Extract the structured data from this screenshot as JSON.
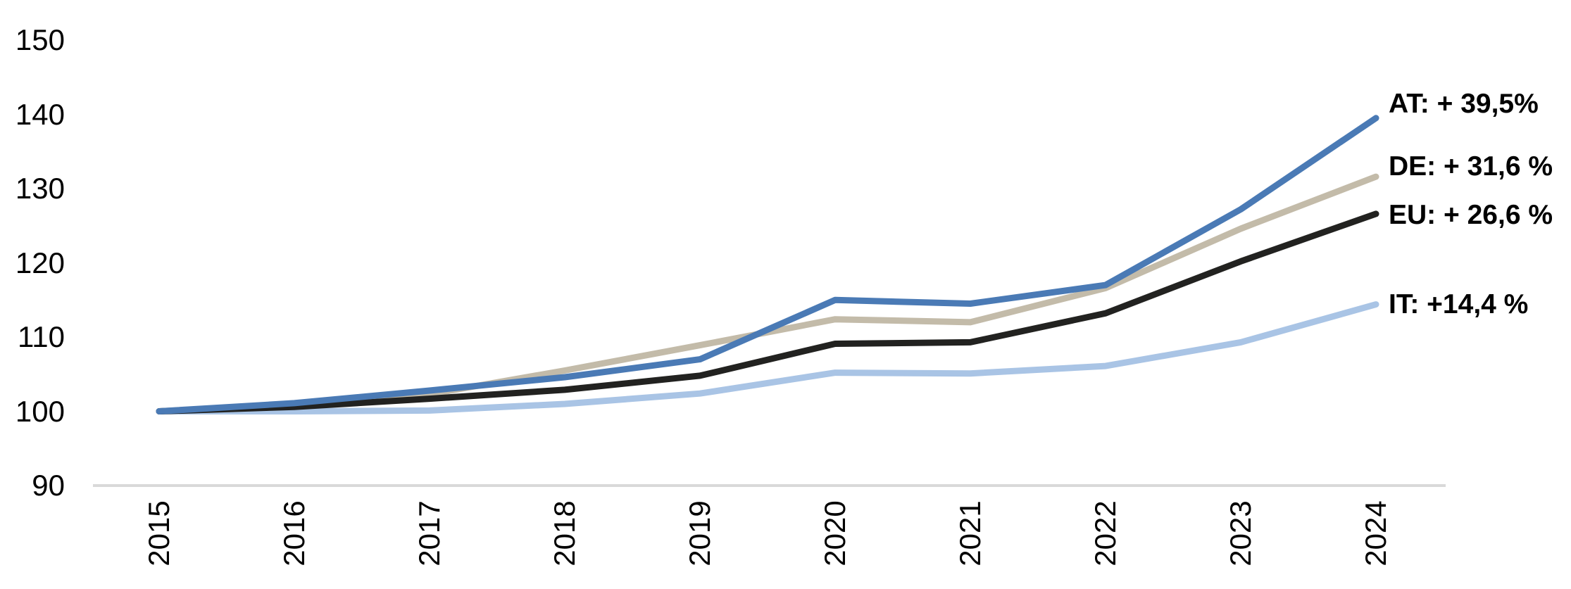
{
  "chart_data": {
    "type": "line",
    "title": "",
    "categories": [
      "2015",
      "2016",
      "2017",
      "2018",
      "2019",
      "2020",
      "2021",
      "2022",
      "2023",
      "2024"
    ],
    "series": [
      {
        "name": "AT",
        "label": "AT: + 39,5%",
        "color": "#4a7ab5",
        "values": [
          100,
          101.1,
          102.8,
          104.6,
          107.0,
          115.0,
          114.5,
          117.0,
          127.2,
          139.5
        ]
      },
      {
        "name": "DE",
        "label": "DE: + 31,6 %",
        "color": "#c3bba9",
        "values": [
          100,
          100.9,
          102.3,
          105.5,
          108.9,
          112.4,
          112.0,
          116.6,
          124.6,
          131.6
        ]
      },
      {
        "name": "EU",
        "label": "EU: + 26,6 %",
        "color": "#222220",
        "values": [
          100,
          100.6,
          101.7,
          102.9,
          104.8,
          109.1,
          109.3,
          113.2,
          120.2,
          126.6
        ]
      },
      {
        "name": "IT",
        "label": "IT: +14,4 %",
        "color": "#a9c4e5",
        "values": [
          100,
          100.0,
          100.1,
          101.0,
          102.4,
          105.2,
          105.1,
          106.1,
          109.3,
          114.4
        ]
      }
    ],
    "y_ticks": [
      90,
      100,
      110,
      120,
      130,
      140,
      150
    ],
    "ylim": [
      90,
      155
    ],
    "xlabel": "",
    "ylabel": "",
    "grid": "off",
    "baseline_at": 90,
    "axis_color": "#d9d9d9",
    "text_color": "#000000",
    "legend_position": "end-of-line-labels-right"
  }
}
